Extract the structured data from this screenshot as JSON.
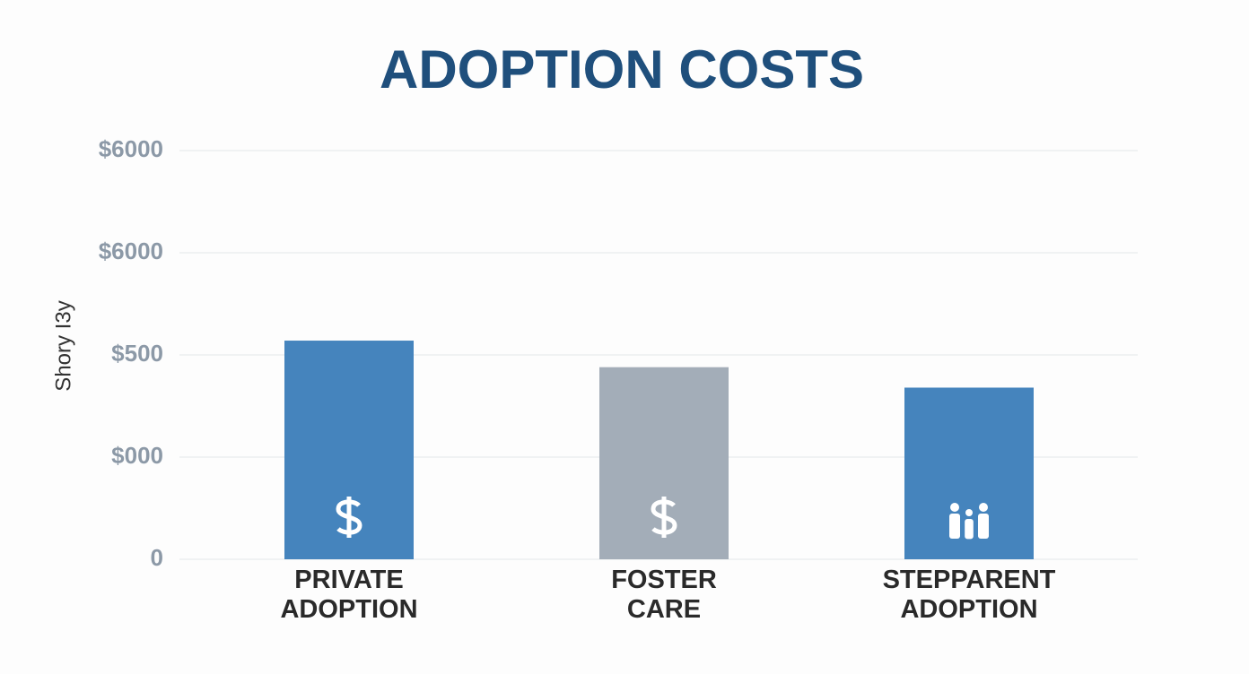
{
  "chart_data": {
    "type": "bar",
    "title": "ADOPTION COSTS",
    "y_label": "Shory I3y",
    "categories": [
      "PRIVATE ADOPTION",
      "FOSTER CARE",
      "STEPPARENT ADOPTION"
    ],
    "values": [
      2.14,
      1.88,
      1.68
    ],
    "colors": [
      "#4584bd",
      "#a3adb8",
      "#4584bd"
    ],
    "ylim": [
      0,
      4
    ],
    "yticks": [
      0,
      {
        "value": 1,
        "label": "$000"
      },
      {
        "value": 2,
        "label": "$500"
      },
      {
        "value": 3,
        "label": "$6000"
      },
      {
        "value": 4,
        "label": "$6000"
      }
    ],
    "grid": true
  }
}
